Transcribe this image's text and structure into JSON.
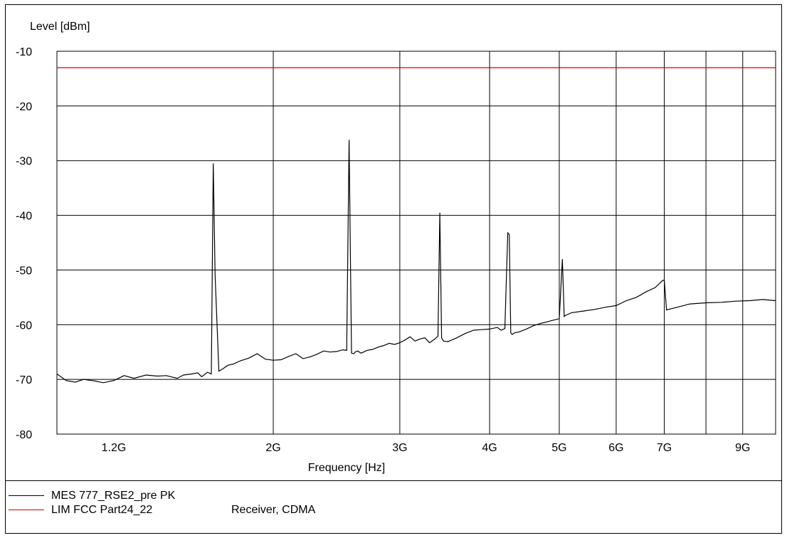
{
  "chart_data": {
    "type": "line",
    "ylabel": "Level [dBm]",
    "xlabel": "Frequency [Hz]",
    "x_scale": "log",
    "xlim": [
      1000000000,
      10000000000
    ],
    "ylim": [
      -80,
      -10
    ],
    "y_ticks": [
      -10,
      -20,
      -30,
      -40,
      -50,
      -60,
      -70,
      -80
    ],
    "x_ticks": [
      {
        "value": 1200000000,
        "label": "1.2G"
      },
      {
        "value": 2000000000,
        "label": "2G"
      },
      {
        "value": 3000000000,
        "label": "3G"
      },
      {
        "value": 4000000000,
        "label": "4G"
      },
      {
        "value": 5000000000,
        "label": "5G"
      },
      {
        "value": 6000000000,
        "label": "6G"
      },
      {
        "value": 7000000000,
        "label": "7G"
      },
      {
        "value": 9000000000,
        "label": "9G"
      }
    ],
    "x_gridlines": [
      2000000000,
      3000000000,
      4000000000,
      5000000000,
      6000000000,
      7000000000,
      8000000000,
      9000000000
    ],
    "grid": true,
    "series": [
      {
        "name": "MES  777_RSE2_pre PK",
        "color": "#000000",
        "x": [
          1000000000,
          1030000000,
          1060000000,
          1090000000,
          1130000000,
          1160000000,
          1200000000,
          1240000000,
          1280000000,
          1330000000,
          1380000000,
          1420000000,
          1470000000,
          1500000000,
          1540000000,
          1570000000,
          1590000000,
          1620000000,
          1640000000,
          1650000000,
          1660000000,
          1680000000,
          1700000000,
          1730000000,
          1760000000,
          1800000000,
          1850000000,
          1900000000,
          1950000000,
          2000000000,
          2050000000,
          2100000000,
          2150000000,
          2200000000,
          2250000000,
          2300000000,
          2350000000,
          2400000000,
          2450000000,
          2500000000,
          2530000000,
          2550000000,
          2570000000,
          2590000000,
          2600000000,
          2620000000,
          2650000000,
          2700000000,
          2750000000,
          2800000000,
          2850000000,
          2900000000,
          2950000000,
          3000000000,
          3050000000,
          3100000000,
          3150000000,
          3200000000,
          3250000000,
          3300000000,
          3350000000,
          3390000000,
          3410000000,
          3430000000,
          3450000000,
          3500000000,
          3600000000,
          3700000000,
          3800000000,
          3900000000,
          4000000000,
          4100000000,
          4150000000,
          4200000000,
          4240000000,
          4260000000,
          4280000000,
          4300000000,
          4330000000,
          4400000000,
          4500000000,
          4600000000,
          4700000000,
          4800000000,
          4900000000,
          5000000000,
          5050000000,
          5080000000,
          5100000000,
          5120000000,
          5200000000,
          5400000000,
          5600000000,
          5800000000,
          6000000000,
          6200000000,
          6400000000,
          6600000000,
          6800000000,
          6950000000,
          7000000000,
          7050000000,
          7300000000,
          7600000000,
          8000000000,
          8400000000,
          8800000000,
          9200000000,
          9600000000,
          10000000000
        ],
        "y": [
          -69.0,
          -70.2,
          -70.5,
          -70.0,
          -70.3,
          -70.6,
          -70.2,
          -69.3,
          -69.8,
          -69.2,
          -69.4,
          -69.3,
          -69.8,
          -69.2,
          -69.0,
          -68.8,
          -69.5,
          -68.7,
          -69.0,
          -30.5,
          -51.0,
          -68.5,
          -68.1,
          -67.4,
          -67.2,
          -66.6,
          -66.1,
          -65.3,
          -66.3,
          -66.5,
          -66.4,
          -65.8,
          -65.3,
          -66.2,
          -65.9,
          -65.4,
          -64.8,
          -65.0,
          -64.9,
          -64.6,
          -64.7,
          -26.2,
          -65.2,
          -65.3,
          -65.0,
          -64.8,
          -65.2,
          -64.7,
          -64.5,
          -64.1,
          -63.8,
          -63.4,
          -63.6,
          -63.3,
          -62.8,
          -62.2,
          -63.0,
          -62.6,
          -62.4,
          -63.3,
          -62.7,
          -62.1,
          -39.5,
          -62.4,
          -63.0,
          -63.1,
          -62.4,
          -61.6,
          -61.0,
          -60.9,
          -60.8,
          -60.5,
          -61.0,
          -60.7,
          -43.2,
          -43.5,
          -61.5,
          -61.8,
          -61.5,
          -61.3,
          -60.8,
          -60.2,
          -59.8,
          -59.5,
          -59.2,
          -58.9,
          -48.0,
          -58.5,
          -58.3,
          -58.2,
          -57.8,
          -57.5,
          -57.2,
          -56.8,
          -56.5,
          -55.6,
          -55.0,
          -54.0,
          -53.2,
          -52.0,
          -51.8,
          -57.3,
          -56.8,
          -56.2,
          -56.0,
          -55.9,
          -55.7,
          -55.6,
          -55.4,
          -55.6
        ]
      },
      {
        "name": "LIM  FCC Part24_22",
        "color": "#cc0000",
        "x": [
          1000000000,
          10000000000
        ],
        "y": [
          -13.0,
          -13.0
        ]
      }
    ],
    "legend_placement": "bottom-left",
    "legend_extra": "Receiver, CDMA"
  }
}
